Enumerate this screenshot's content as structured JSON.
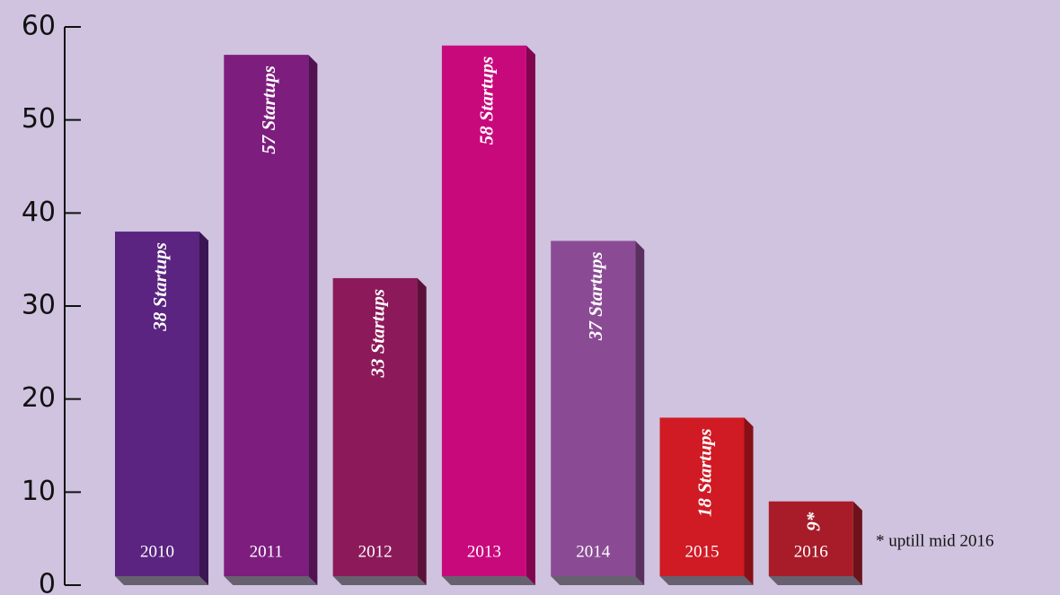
{
  "chart_data": {
    "type": "bar",
    "categories": [
      "2010",
      "2011",
      "2012",
      "2013",
      "2014",
      "2015",
      "2016"
    ],
    "values": [
      38,
      57,
      33,
      58,
      37,
      18,
      9
    ],
    "value_labels": [
      "38 Startups",
      "57 Startups",
      "33 Startups",
      "58 Startups",
      "37 Startups",
      "18 Startups",
      "9*"
    ],
    "colors": [
      "#5a2480",
      "#7d1d7e",
      "#8c1a5a",
      "#c8097c",
      "#8b4b94",
      "#d01a24",
      "#a81c2a"
    ],
    "ylim": [
      0,
      60
    ],
    "yticks": [
      0,
      10,
      20,
      30,
      40,
      50,
      60
    ],
    "annotations": [
      "* uptill mid 2016"
    ]
  }
}
